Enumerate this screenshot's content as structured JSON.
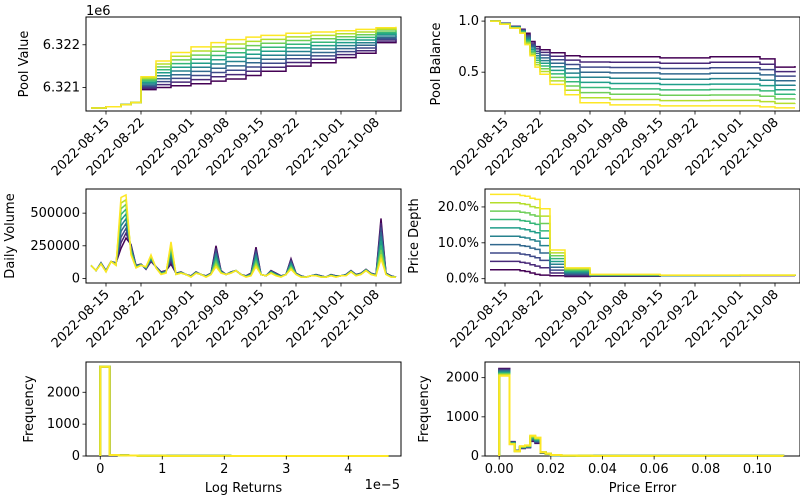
{
  "palette": [
    "#440154",
    "#482878",
    "#3e4989",
    "#31688e",
    "#26828e",
    "#1f9e89",
    "#35b779",
    "#6ece58",
    "#b5de2b",
    "#fde725"
  ],
  "date_ticks": [
    "2022-08-15",
    "2022-08-22",
    "2022-09-01",
    "2022-09-08",
    "2022-09-15",
    "2022-09-22",
    "2022-10-01",
    "2022-10-08"
  ],
  "chart_data": [
    {
      "type": "line",
      "id": "pool_value",
      "ylabel": "Pool Value",
      "offset_label": "1e6",
      "x_range": [
        "2022-08-11",
        "2022-10-13"
      ],
      "ylim": [
        6.32045,
        6.32265
      ],
      "yticks": [
        6.321,
        6.322
      ],
      "ytick_labels": [
        "6.321",
        "6.322"
      ],
      "x_tick_labels": [
        "2022-08-15",
        "2022-08-22",
        "2022-09-01",
        "2022-09-08",
        "2022-09-15",
        "2022-09-22",
        "2022-10-01",
        "2022-10-08"
      ],
      "series_count": 10,
      "x": [
        "2022-08-12",
        "2022-08-15",
        "2022-08-18",
        "2022-08-20",
        "2022-08-22",
        "2022-08-25",
        "2022-08-28",
        "2022-09-01",
        "2022-09-05",
        "2022-09-08",
        "2022-09-12",
        "2022-09-15",
        "2022-09-20",
        "2022-09-25",
        "2022-09-30",
        "2022-10-04",
        "2022-10-08",
        "2022-10-12"
      ],
      "series_first": [
        6.32052,
        6.32055,
        6.3206,
        6.32065,
        6.32095,
        6.321,
        6.32104,
        6.32109,
        6.32115,
        6.3212,
        6.32128,
        6.32138,
        6.3215,
        6.32158,
        6.3217,
        6.3218,
        6.32205,
        6.3221
      ],
      "series_last": [
        6.32052,
        6.32055,
        6.3206,
        6.32065,
        6.32125,
        6.32162,
        6.32182,
        6.32195,
        6.32205,
        6.32212,
        6.32218,
        6.32222,
        6.32227,
        6.3223,
        6.32233,
        6.32236,
        6.3224,
        6.32242
      ]
    },
    {
      "type": "line",
      "id": "pool_balance",
      "ylabel": "Pool Balance",
      "x_range": [
        "2022-08-11",
        "2022-10-13"
      ],
      "ylim": [
        0.12,
        1.04
      ],
      "yticks": [
        0.5,
        1.0
      ],
      "ytick_labels": [
        "0.5",
        "1.0"
      ],
      "x_tick_labels": [
        "2022-08-15",
        "2022-08-22",
        "2022-09-01",
        "2022-09-08",
        "2022-09-15",
        "2022-09-22",
        "2022-10-01",
        "2022-10-08"
      ],
      "series_count": 10,
      "x": [
        "2022-08-12",
        "2022-08-14",
        "2022-08-16",
        "2022-08-18",
        "2022-08-19",
        "2022-08-20",
        "2022-08-21",
        "2022-08-22",
        "2022-08-24",
        "2022-08-27",
        "2022-08-30",
        "2022-09-05",
        "2022-09-15",
        "2022-09-25",
        "2022-10-05",
        "2022-10-08",
        "2022-10-12"
      ],
      "series_first": [
        1.0,
        0.98,
        0.95,
        0.92,
        0.88,
        0.8,
        0.75,
        0.72,
        0.69,
        0.66,
        0.65,
        0.65,
        0.64,
        0.65,
        0.63,
        0.55,
        0.56
      ],
      "series_last": [
        1.0,
        0.97,
        0.93,
        0.88,
        0.77,
        0.66,
        0.55,
        0.48,
        0.38,
        0.28,
        0.2,
        0.18,
        0.17,
        0.17,
        0.16,
        0.15,
        0.15
      ]
    },
    {
      "type": "line",
      "id": "daily_volume",
      "ylabel": "Daily Volume",
      "x_range": [
        "2022-08-11",
        "2022-10-13"
      ],
      "ylim": [
        -35000,
        685000
      ],
      "yticks": [
        0,
        250000,
        500000
      ],
      "ytick_labels": [
        "0",
        "250000",
        "500000"
      ],
      "x_tick_labels": [
        "2022-08-15",
        "2022-08-22",
        "2022-09-01",
        "2022-09-08",
        "2022-09-15",
        "2022-09-22",
        "2022-10-01",
        "2022-10-08"
      ],
      "series_count": 10,
      "x": [
        "2022-08-12",
        "2022-08-13",
        "2022-08-14",
        "2022-08-15",
        "2022-08-16",
        "2022-08-17",
        "2022-08-18",
        "2022-08-19",
        "2022-08-20",
        "2022-08-21",
        "2022-08-22",
        "2022-08-23",
        "2022-08-24",
        "2022-08-25",
        "2022-08-26",
        "2022-08-27",
        "2022-08-28",
        "2022-08-29",
        "2022-08-30",
        "2022-08-31",
        "2022-09-01",
        "2022-09-02",
        "2022-09-03",
        "2022-09-04",
        "2022-09-05",
        "2022-09-06",
        "2022-09-07",
        "2022-09-08",
        "2022-09-09",
        "2022-09-10",
        "2022-09-11",
        "2022-09-12",
        "2022-09-13",
        "2022-09-14",
        "2022-09-15",
        "2022-09-16",
        "2022-09-17",
        "2022-09-18",
        "2022-09-19",
        "2022-09-20",
        "2022-09-21",
        "2022-09-22",
        "2022-09-23",
        "2022-09-24",
        "2022-09-25",
        "2022-09-26",
        "2022-09-27",
        "2022-09-28",
        "2022-09-29",
        "2022-09-30",
        "2022-10-01",
        "2022-10-02",
        "2022-10-03",
        "2022-10-04",
        "2022-10-05",
        "2022-10-06",
        "2022-10-07",
        "2022-10-08",
        "2022-10-09",
        "2022-10-10",
        "2022-10-11",
        "2022-10-12"
      ],
      "series_first": [
        100000,
        60000,
        120000,
        60000,
        130000,
        120000,
        230000,
        310000,
        260000,
        100000,
        110000,
        70000,
        130000,
        90000,
        50000,
        60000,
        110000,
        40000,
        50000,
        30000,
        20000,
        50000,
        30000,
        20000,
        40000,
        250000,
        60000,
        30000,
        50000,
        60000,
        30000,
        20000,
        40000,
        240000,
        30000,
        20000,
        60000,
        40000,
        20000,
        30000,
        150000,
        40000,
        20000,
        10000,
        20000,
        30000,
        20000,
        10000,
        30000,
        20000,
        20000,
        30000,
        60000,
        30000,
        40000,
        70000,
        40000,
        30000,
        460000,
        40000,
        20000,
        10000
      ],
      "series_last": [
        100000,
        60000,
        110000,
        50000,
        130000,
        100000,
        620000,
        640000,
        180000,
        80000,
        100000,
        90000,
        180000,
        80000,
        30000,
        40000,
        280000,
        30000,
        40000,
        30000,
        10000,
        40000,
        30000,
        10000,
        30000,
        90000,
        40000,
        30000,
        40000,
        60000,
        30000,
        10000,
        20000,
        90000,
        30000,
        20000,
        40000,
        20000,
        10000,
        30000,
        70000,
        30000,
        10000,
        10000,
        20000,
        20000,
        10000,
        10000,
        20000,
        10000,
        20000,
        20000,
        50000,
        20000,
        30000,
        60000,
        30000,
        20000,
        150000,
        30000,
        10000,
        10000
      ]
    },
    {
      "type": "line",
      "id": "price_depth",
      "ylabel": "Price Depth",
      "x_range": [
        "2022-08-11",
        "2022-10-13"
      ],
      "ylim": [
        -0.012,
        0.25
      ],
      "yticks": [
        0.0,
        0.1,
        0.2
      ],
      "ytick_labels": [
        "0.0%",
        "10.0%",
        "20.0%"
      ],
      "x_tick_labels": [
        "2022-08-15",
        "2022-08-22",
        "2022-09-01",
        "2022-09-08",
        "2022-09-15",
        "2022-09-22",
        "2022-10-01",
        "2022-10-08"
      ],
      "series_count": 10,
      "x": [
        "2022-08-12",
        "2022-08-15",
        "2022-08-18",
        "2022-08-19",
        "2022-08-20",
        "2022-08-21",
        "2022-08-22",
        "2022-08-24",
        "2022-08-27",
        "2022-09-01",
        "2022-09-15",
        "2022-10-01",
        "2022-10-12"
      ],
      "series_first": [
        0.025,
        0.025,
        0.022,
        0.02,
        0.016,
        0.012,
        0.01,
        0.008,
        0.006,
        0.007,
        0.008,
        0.009,
        0.008
      ],
      "series_last": [
        0.235,
        0.235,
        0.232,
        0.23,
        0.224,
        0.221,
        0.195,
        0.08,
        0.03,
        0.012,
        0.01,
        0.01,
        0.008
      ]
    },
    {
      "type": "histogram",
      "id": "log_returns",
      "xlabel": "Log Returns",
      "ylabel": "Frequency",
      "offset_label": "1e−5",
      "xlim": [
        -2.3e-06,
        4.85e-05
      ],
      "ylim": [
        0,
        2950
      ],
      "xticks": [
        0,
        1e-05,
        2e-05,
        3e-05,
        4e-05
      ],
      "xtick_labels": [
        "0",
        "1",
        "2",
        "3",
        "4"
      ],
      "yticks": [
        0,
        1000,
        2000
      ],
      "ytick_labels": [
        "0",
        "1000",
        "2000"
      ],
      "series_count": 10,
      "bin_edges": [
        0,
        1.5e-06,
        3e-06,
        4.5e-06,
        6e-06,
        7.5e-06,
        9e-06,
        1.05e-05,
        1.2e-05,
        2.1e-05,
        2.3e-05,
        4.65e-05
      ],
      "counts": [
        2800,
        30,
        20,
        15,
        10,
        8,
        5,
        4,
        2,
        1,
        1
      ]
    },
    {
      "type": "histogram",
      "id": "price_error",
      "xlabel": "Price Error",
      "ylabel": "Frequency",
      "xlim": [
        -0.0055,
        0.1165
      ],
      "ylim": [
        0,
        2400
      ],
      "xticks": [
        0.0,
        0.02,
        0.04,
        0.06,
        0.08,
        0.1
      ],
      "xtick_labels": [
        "0.00",
        "0.02",
        "0.04",
        "0.06",
        "0.08",
        "0.10"
      ],
      "yticks": [
        0,
        1000,
        2000
      ],
      "ytick_labels": [
        "0",
        "1000",
        "2000"
      ],
      "series_count": 10,
      "bin_edges": [
        0,
        0.002,
        0.004,
        0.006,
        0.008,
        0.01,
        0.012,
        0.014,
        0.016,
        0.018,
        0.02,
        0.024,
        0.03,
        0.036,
        0.11
      ],
      "counts_first": [
        2230,
        2230,
        360,
        140,
        200,
        220,
        380,
        330,
        80,
        50,
        20,
        10,
        5,
        2
      ],
      "counts_last": [
        2050,
        2050,
        300,
        120,
        250,
        270,
        520,
        470,
        100,
        60,
        25,
        10,
        5,
        2
      ]
    }
  ]
}
